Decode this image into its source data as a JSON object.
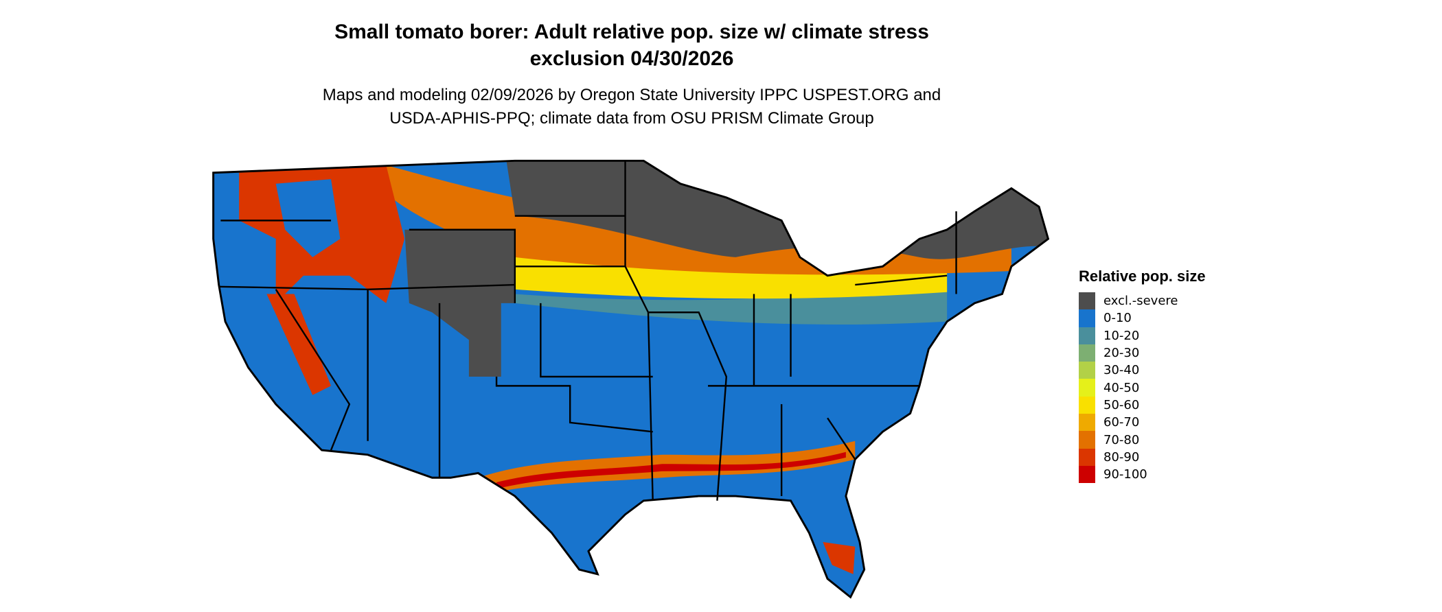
{
  "title_line1": "Small tomato borer: Adult relative pop. size w/ climate stress",
  "title_line2": "exclusion 04/30/2026",
  "subtitle_line1": "Maps and modeling 02/09/2026 by Oregon State University IPPC USPEST.ORG and",
  "subtitle_line2": "USDA-APHIS-PPQ; climate data from OSU PRISM Climate Group",
  "legend": {
    "title": "Relative pop. size",
    "items": [
      {
        "label": "excl.-severe",
        "color": "#4d4d4d"
      },
      {
        "label": "0-10",
        "color": "#1874cd"
      },
      {
        "label": "10-20",
        "color": "#4a8f9c"
      },
      {
        "label": "20-30",
        "color": "#7daf72"
      },
      {
        "label": "30-40",
        "color": "#b2d147"
      },
      {
        "label": "40-50",
        "color": "#e5f01a"
      },
      {
        "label": "50-60",
        "color": "#f9e000"
      },
      {
        "label": "60-70",
        "color": "#efaa00"
      },
      {
        "label": "70-80",
        "color": "#e37100"
      },
      {
        "label": "80-90",
        "color": "#db3600"
      },
      {
        "label": "90-100",
        "color": "#cd0000"
      }
    ]
  },
  "map": {
    "region": "Contiguous United States",
    "background_class": "0-10"
  }
}
